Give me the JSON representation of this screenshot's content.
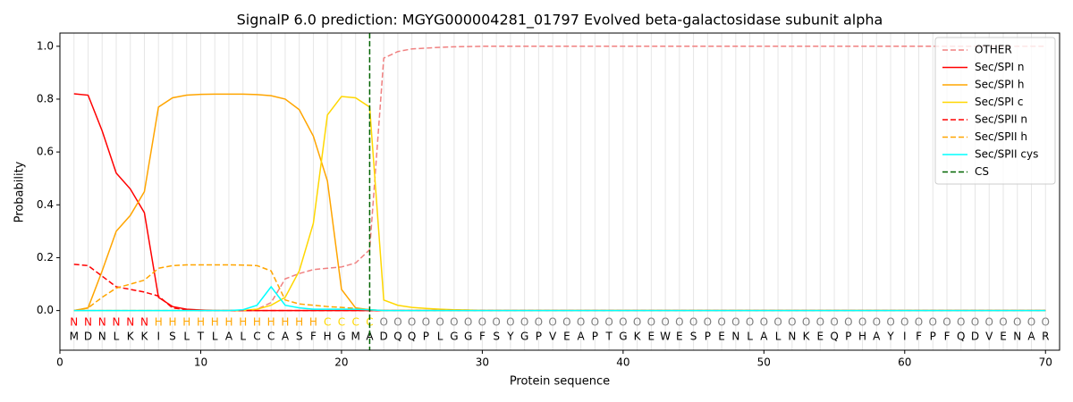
{
  "chart_data": {
    "type": "line",
    "title": "SignalP 6.0 prediction: MGYG000004281_01797 Evolved beta-galactosidase subunit alpha",
    "xlabel": "Protein sequence",
    "ylabel": "Probability",
    "xlim": [
      0,
      71
    ],
    "ylim": [
      -0.15,
      1.05
    ],
    "xticks": [
      0,
      10,
      20,
      30,
      40,
      50,
      60,
      70
    ],
    "yticks": [
      {
        "value": 0,
        "label": "0.0"
      },
      {
        "value": 0.2,
        "label": "0.2"
      },
      {
        "value": 0.4,
        "label": "0.4"
      },
      {
        "value": 0.6,
        "label": "0.6"
      },
      {
        "value": 0.8,
        "label": "0.8"
      },
      {
        "value": 1,
        "label": "1.0"
      }
    ],
    "position_grid": true,
    "legend": "upper right",
    "x": [
      1,
      2,
      3,
      4,
      5,
      6,
      7,
      8,
      9,
      10,
      11,
      12,
      13,
      14,
      15,
      16,
      17,
      18,
      19,
      20,
      21,
      22,
      23,
      24,
      25,
      26,
      27,
      28,
      29,
      30,
      31,
      32,
      33,
      34,
      35,
      36,
      37,
      38,
      39,
      40,
      41,
      42,
      43,
      44,
      45,
      46,
      47,
      48,
      49,
      50,
      51,
      52,
      53,
      54,
      55,
      56,
      57,
      58,
      59,
      60,
      61,
      62,
      63,
      64,
      65,
      66,
      67,
      68,
      69,
      70
    ],
    "sequence": [
      "M",
      "D",
      "N",
      "L",
      "K",
      "K",
      "I",
      "S",
      "L",
      "T",
      "L",
      "A",
      "L",
      "C",
      "C",
      "A",
      "S",
      "F",
      "H",
      "G",
      "M",
      "A",
      "D",
      "Q",
      "Q",
      "P",
      "L",
      "G",
      "G",
      "F",
      "S",
      "Y",
      "G",
      "P",
      "V",
      "E",
      "A",
      "P",
      "T",
      "G",
      "K",
      "E",
      "W",
      "E",
      "S",
      "P",
      "E",
      "N",
      "L",
      "A",
      "L",
      "N",
      "K",
      "E",
      "Q",
      "P",
      "H",
      "A",
      "Y",
      "I",
      "F",
      "P",
      "F",
      "Q",
      "D",
      "V",
      "E",
      "N",
      "A",
      "R"
    ],
    "labels": [
      "N",
      "N",
      "N",
      "N",
      "N",
      "N",
      "H",
      "H",
      "H",
      "H",
      "H",
      "H",
      "H",
      "H",
      "H",
      "H",
      "H",
      "H",
      "C",
      "C",
      "C",
      "C",
      "O",
      "O",
      "O",
      "O",
      "O",
      "O",
      "O",
      "O",
      "O",
      "O",
      "O",
      "O",
      "O",
      "O",
      "O",
      "O",
      "O",
      "O",
      "O",
      "O",
      "O",
      "O",
      "O",
      "O",
      "O",
      "O",
      "O",
      "O",
      "O",
      "O",
      "O",
      "O",
      "O",
      "O",
      "O",
      "O",
      "O",
      "O",
      "O",
      "O",
      "O",
      "O",
      "O",
      "O",
      "O",
      "O",
      "O",
      "O"
    ],
    "label_colors": {
      "N": "#ff0000",
      "H": "#ffa500",
      "C": "#ffd700",
      "O": "#808080"
    },
    "series": [
      {
        "name": "OTHER",
        "color": "#f08080",
        "dashed": true,
        "values": [
          0,
          0,
          0,
          0,
          0,
          0,
          0,
          0,
          0,
          0,
          0,
          0,
          0,
          0.005,
          0.03,
          0.12,
          0.14,
          0.155,
          0.16,
          0.165,
          0.18,
          0.23,
          0.955,
          0.98,
          0.99,
          0.993,
          0.996,
          0.998,
          0.999,
          1,
          1,
          1,
          1,
          1,
          1,
          1,
          1,
          1,
          1,
          1,
          1,
          1,
          1,
          1,
          1,
          1,
          1,
          1,
          1,
          1,
          1,
          1,
          1,
          1,
          1,
          1,
          1,
          1,
          1,
          1,
          1,
          1,
          1,
          1,
          1,
          1,
          1,
          1,
          1,
          1
        ]
      },
      {
        "name": "Sec/SPI n",
        "color": "#ff0000",
        "dashed": false,
        "values": [
          0.82,
          0.815,
          0.68,
          0.52,
          0.46,
          0.37,
          0.05,
          0.015,
          0.005,
          0.002,
          0,
          0,
          0,
          0,
          0,
          0,
          0,
          0,
          0,
          0,
          0,
          0,
          0,
          0,
          0,
          0,
          0,
          0,
          0,
          0,
          0,
          0,
          0,
          0,
          0,
          0,
          0,
          0,
          0,
          0,
          0,
          0,
          0,
          0,
          0,
          0,
          0,
          0,
          0,
          0,
          0,
          0,
          0,
          0,
          0,
          0,
          0,
          0,
          0,
          0,
          0,
          0,
          0,
          0,
          0,
          0,
          0,
          0,
          0,
          0
        ]
      },
      {
        "name": "Sec/SPI h",
        "color": "#ffa500",
        "dashed": false,
        "values": [
          0,
          0.01,
          0.15,
          0.3,
          0.36,
          0.45,
          0.77,
          0.805,
          0.815,
          0.818,
          0.819,
          0.819,
          0.819,
          0.817,
          0.813,
          0.8,
          0.76,
          0.66,
          0.49,
          0.08,
          0.01,
          0.003,
          0,
          0,
          0,
          0,
          0,
          0,
          0,
          0,
          0,
          0,
          0,
          0,
          0,
          0,
          0,
          0,
          0,
          0,
          0,
          0,
          0,
          0,
          0,
          0,
          0,
          0,
          0,
          0,
          0,
          0,
          0,
          0,
          0,
          0,
          0,
          0,
          0,
          0,
          0,
          0,
          0,
          0,
          0,
          0,
          0,
          0,
          0,
          0
        ]
      },
      {
        "name": "Sec/SPI c",
        "color": "#ffd700",
        "dashed": false,
        "values": [
          0,
          0,
          0,
          0,
          0,
          0,
          0,
          0,
          0,
          0,
          0,
          0,
          0,
          0.005,
          0.02,
          0.05,
          0.15,
          0.33,
          0.74,
          0.81,
          0.805,
          0.77,
          0.04,
          0.02,
          0.012,
          0.008,
          0.005,
          0.003,
          0.002,
          0,
          0,
          0,
          0,
          0,
          0,
          0,
          0,
          0,
          0,
          0,
          0,
          0,
          0,
          0,
          0,
          0,
          0,
          0,
          0,
          0,
          0,
          0,
          0,
          0,
          0,
          0,
          0,
          0,
          0,
          0,
          0,
          0,
          0,
          0,
          0,
          0,
          0,
          0,
          0,
          0
        ]
      },
      {
        "name": "Sec/SPII n",
        "color": "#ff0000",
        "dashed": true,
        "values": [
          0.175,
          0.17,
          0.13,
          0.09,
          0.08,
          0.07,
          0.055,
          0.01,
          0.003,
          0,
          0,
          0,
          0,
          0,
          0,
          0,
          0,
          0,
          0,
          0,
          0,
          0,
          0,
          0,
          0,
          0,
          0,
          0,
          0,
          0,
          0,
          0,
          0,
          0,
          0,
          0,
          0,
          0,
          0,
          0,
          0,
          0,
          0,
          0,
          0,
          0,
          0,
          0,
          0,
          0,
          0,
          0,
          0,
          0,
          0,
          0,
          0,
          0,
          0,
          0,
          0,
          0,
          0,
          0,
          0,
          0,
          0,
          0,
          0,
          0
        ]
      },
      {
        "name": "Sec/SPII h",
        "color": "#ffa500",
        "dashed": true,
        "values": [
          0,
          0.01,
          0.05,
          0.085,
          0.1,
          0.115,
          0.16,
          0.17,
          0.173,
          0.173,
          0.173,
          0.173,
          0.172,
          0.17,
          0.15,
          0.04,
          0.025,
          0.02,
          0.015,
          0.012,
          0.008,
          0.003,
          0,
          0,
          0,
          0,
          0,
          0,
          0,
          0,
          0,
          0,
          0,
          0,
          0,
          0,
          0,
          0,
          0,
          0,
          0,
          0,
          0,
          0,
          0,
          0,
          0,
          0,
          0,
          0,
          0,
          0,
          0,
          0,
          0,
          0,
          0,
          0,
          0,
          0,
          0,
          0,
          0,
          0,
          0,
          0,
          0,
          0,
          0,
          0
        ]
      },
      {
        "name": "Sec/SPII cys",
        "color": "#00ffff",
        "dashed": false,
        "values": [
          0,
          0,
          0,
          0,
          0,
          0,
          0,
          0,
          0,
          0,
          0,
          0,
          0.003,
          0.02,
          0.09,
          0.02,
          0.01,
          0.005,
          0.005,
          0.005,
          0.005,
          0.003,
          0,
          0,
          0,
          0,
          0,
          0,
          0,
          0,
          0,
          0,
          0,
          0,
          0,
          0,
          0,
          0,
          0,
          0,
          0,
          0,
          0,
          0,
          0,
          0,
          0,
          0,
          0,
          0,
          0,
          0,
          0,
          0,
          0,
          0,
          0,
          0,
          0,
          0,
          0,
          0,
          0,
          0,
          0,
          0,
          0,
          0,
          0,
          0
        ]
      }
    ],
    "cs": {
      "name": "CS",
      "x": 22,
      "color": "#006400"
    }
  }
}
